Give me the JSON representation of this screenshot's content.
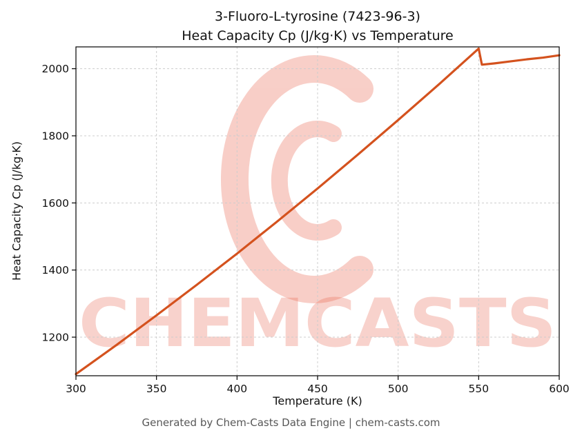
{
  "footer": "Generated by Chem-Casts Data Engine | chem-casts.com",
  "watermark": {
    "text": "CHEMCASTS",
    "color": "#e9604a"
  },
  "chart_data": {
    "type": "line",
    "title_line1": "3-Fluoro-L-tyrosine (7423-96-3)",
    "title_line2": "Heat Capacity Cp (J/kg·K) vs Temperature",
    "xlabel": "Temperature (K)",
    "ylabel": "Heat Capacity Cp (J/kg·K)",
    "xlim": [
      300,
      600
    ],
    "ylim": [
      1085,
      2065
    ],
    "xticks": [
      300,
      350,
      400,
      450,
      500,
      550,
      600
    ],
    "yticks": [
      1200,
      1400,
      1600,
      1800,
      2000
    ],
    "grid": true,
    "legend": false,
    "grid_color": "#cccccc",
    "series": [
      {
        "name": "Heat Capacity Cp",
        "color": "#d4521e",
        "x": [
          300,
          325,
          350,
          375,
          400,
          425,
          450,
          475,
          500,
          525,
          550,
          552,
          560,
          570,
          580,
          590,
          600
        ],
        "y": [
          1090,
          1176,
          1265,
          1356,
          1449,
          1545,
          1643,
          1744,
          1847,
          1952,
          2060,
          2012,
          2016,
          2022,
          2028,
          2033,
          2040
        ]
      }
    ]
  }
}
